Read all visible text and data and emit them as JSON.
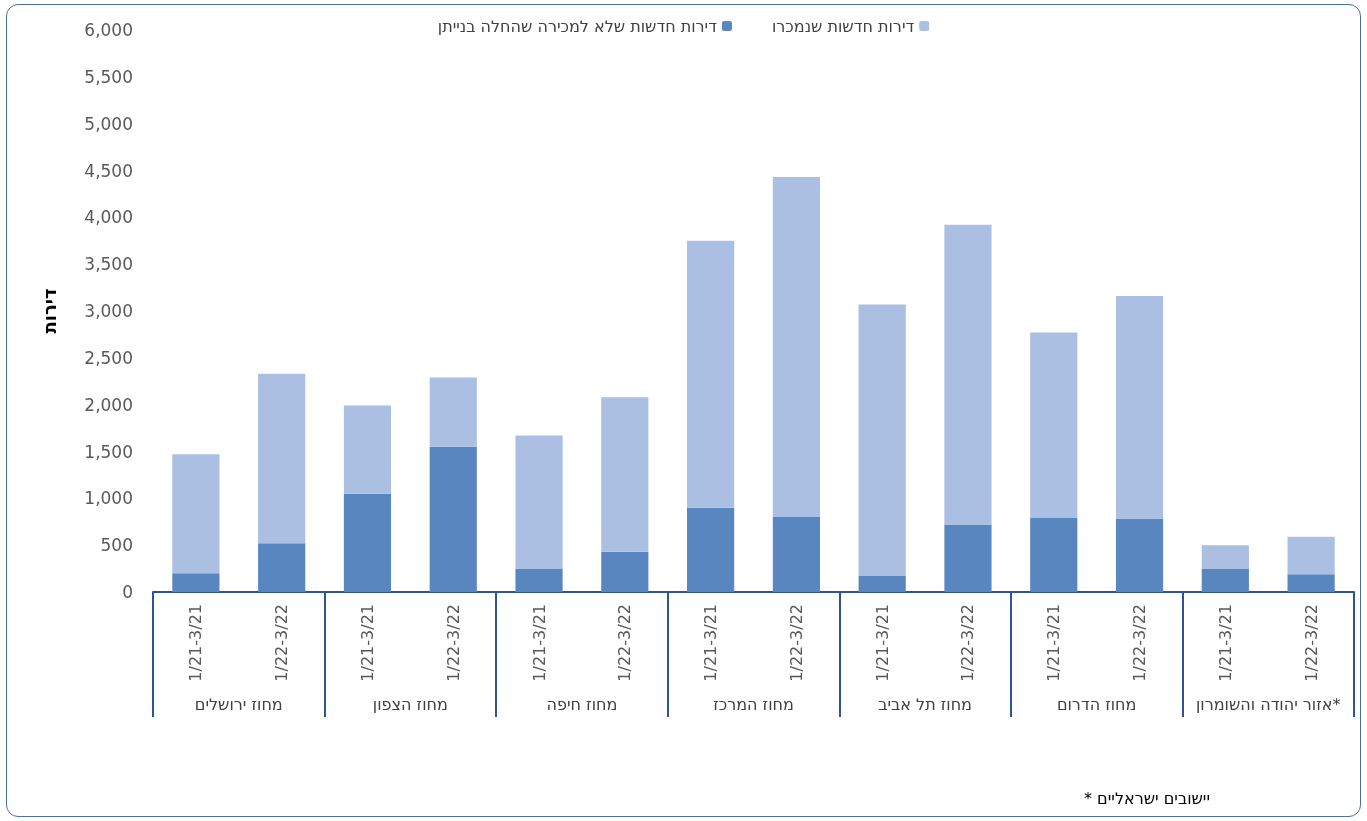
{
  "chart_data": {
    "type": "bar",
    "stacked": true,
    "ylabel": "דירות",
    "categories": [
      "1/21-3/21",
      "1/22-3/22",
      "1/21-3/21",
      "1/22-3/22",
      "1/21-3/21",
      "1/22-3/22",
      "1/21-3/21",
      "1/22-3/22",
      "1/21-3/21",
      "1/22-3/22",
      "1/21-3/21",
      "1/22-3/22",
      "1/21-3/21",
      "1/22-3/22"
    ],
    "series": [
      {
        "name": "דירות חדשות שלא למכירה שהחלה בנייתן",
        "color": "#5a86c0",
        "values": [
          200,
          520,
          1050,
          1550,
          250,
          430,
          900,
          800,
          170,
          720,
          790,
          780,
          250,
          190
        ]
      },
      {
        "name": "דירות חדשות שנמכרו",
        "color": "#aabfe2",
        "values": [
          1270,
          1810,
          940,
          740,
          1420,
          1650,
          2850,
          3630,
          2900,
          3200,
          1980,
          2380,
          250,
          400
        ]
      }
    ],
    "ylim": [
      0,
      6000
    ],
    "yticks": [
      0,
      500,
      {
        "value": 1000,
        "label": "1,000"
      },
      {
        "value": 1500,
        "label": "1,500"
      },
      {
        "value": 2000,
        "label": "2,000"
      },
      {
        "value": 2500,
        "label": "2,500"
      },
      {
        "value": 3000,
        "label": "3,000"
      },
      {
        "value": 3500,
        "label": "3,500"
      },
      {
        "value": 4000,
        "label": "4,000"
      },
      {
        "value": 4500,
        "label": "4,500"
      },
      {
        "value": 5000,
        "label": "5,000"
      },
      {
        "value": 5500,
        "label": "5,500"
      },
      {
        "value": 6000,
        "label": "6,000"
      }
    ],
    "legend": "top",
    "grid": false,
    "annotations": [
      "מחוז ירושלים",
      "מחוז הצפון",
      "מחוז חיפה",
      "מחוז המרכז",
      "מחוז תל אביב",
      "מחוז הדרום",
      "אזור יהודה והשומרון*",
      "* יישובים ישראליים"
    ]
  }
}
